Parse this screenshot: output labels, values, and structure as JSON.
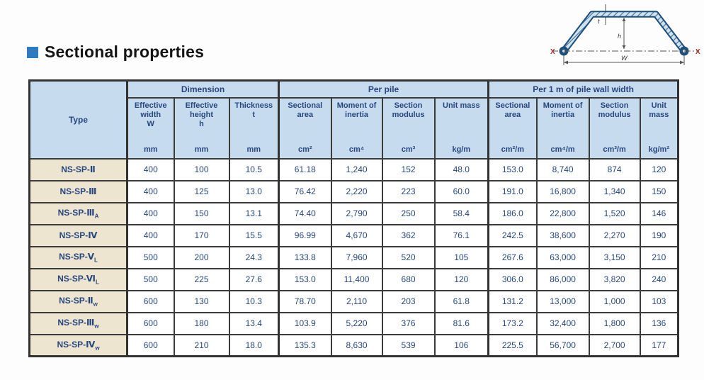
{
  "title": {
    "text": "Sectional properties"
  },
  "diagram": {
    "name": "sheet-pile-cross-section",
    "axis_label_left": "X",
    "axis_label_right": "X",
    "width_label": "W",
    "height_label": "h",
    "thickness_label": "t"
  },
  "table": {
    "type_header": "Type",
    "groups": [
      {
        "label": "Dimension",
        "span": 3
      },
      {
        "label": "Per pile",
        "span": 4
      },
      {
        "label": "Per 1 m of pile wall width",
        "span": 4
      }
    ],
    "columns": [
      {
        "label": "Effective width",
        "symbol": "W",
        "unit": "mm"
      },
      {
        "label": "Effective height",
        "symbol": "h",
        "unit": "mm"
      },
      {
        "label": "Thickness",
        "symbol": "t",
        "unit": "mm"
      },
      {
        "label": "Sectional area",
        "symbol": "",
        "unit": "cm²"
      },
      {
        "label": "Moment of inertia",
        "symbol": "",
        "unit": "cm⁴"
      },
      {
        "label": "Section modulus",
        "symbol": "",
        "unit": "cm³"
      },
      {
        "label": "Unit mass",
        "symbol": "",
        "unit": "kg/m"
      },
      {
        "label": "Sectional area",
        "symbol": "",
        "unit": "cm²/m"
      },
      {
        "label": "Moment of inertia",
        "symbol": "",
        "unit": "cm⁴/m"
      },
      {
        "label": "Section modulus",
        "symbol": "",
        "unit": "cm³/m"
      },
      {
        "label": "Unit mass",
        "symbol": "",
        "unit": "kg/m²"
      }
    ],
    "rows": [
      {
        "type": "NS-SP-Ⅱ",
        "sub": "",
        "values": [
          "400",
          "100",
          "10.5",
          "61.18",
          "1,240",
          "152",
          "48.0",
          "153.0",
          "8,740",
          "874",
          "120"
        ]
      },
      {
        "type": "NS-SP-Ⅲ",
        "sub": "",
        "values": [
          "400",
          "125",
          "13.0",
          "76.42",
          "2,220",
          "223",
          "60.0",
          "191.0",
          "16,800",
          "1,340",
          "150"
        ]
      },
      {
        "type": "NS-SP-Ⅲ",
        "sub": "A",
        "values": [
          "400",
          "150",
          "13.1",
          "74.40",
          "2,790",
          "250",
          "58.4",
          "186.0",
          "22,800",
          "1,520",
          "146"
        ]
      },
      {
        "type": "NS-SP-Ⅳ",
        "sub": "",
        "values": [
          "400",
          "170",
          "15.5",
          "96.99",
          "4,670",
          "362",
          "76.1",
          "242.5",
          "38,600",
          "2,270",
          "190"
        ]
      },
      {
        "type": "NS-SP-Ⅴ",
        "sub": "L",
        "values": [
          "500",
          "200",
          "24.3",
          "133.8",
          "7,960",
          "520",
          "105",
          "267.6",
          "63,000",
          "3,150",
          "210"
        ]
      },
      {
        "type": "NS-SP-Ⅵ",
        "sub": "L",
        "values": [
          "500",
          "225",
          "27.6",
          "153.0",
          "11,400",
          "680",
          "120",
          "306.0",
          "86,000",
          "3,820",
          "240"
        ]
      },
      {
        "type": "NS-SP-Ⅱ",
        "sub": "w",
        "values": [
          "600",
          "130",
          "10.3",
          "78.70",
          "2,110",
          "203",
          "61.8",
          "131.2",
          "13,000",
          "1,000",
          "103"
        ]
      },
      {
        "type": "NS-SP-Ⅲ",
        "sub": "w",
        "values": [
          "600",
          "180",
          "13.4",
          "103.9",
          "5,220",
          "376",
          "81.6",
          "173.2",
          "32,400",
          "1,800",
          "136"
        ]
      },
      {
        "type": "NS-SP-Ⅳ",
        "sub": "w",
        "values": [
          "600",
          "210",
          "18.0",
          "135.3",
          "8,630",
          "539",
          "106",
          "225.5",
          "56,700",
          "2,700",
          "177"
        ]
      }
    ]
  },
  "colors": {
    "accent_blue": "#2f7bbd",
    "header_bg": "#c7dbee",
    "type_column_bg": "#ede5d0",
    "table_text": "#27477e",
    "border": "#323232",
    "axis_label_red": "#b03026",
    "steel_outline": "#1f4e79",
    "steel_fill": "#cfe2f0"
  }
}
